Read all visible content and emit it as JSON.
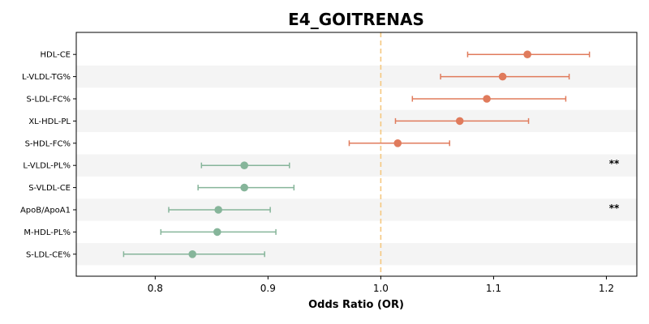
{
  "chart_data": {
    "type": "scatter",
    "subtype": "forest-plot",
    "title": "E4_GOITRENAS",
    "xlabel": "Odds Ratio (OR)",
    "ylabel": "",
    "xlim": [
      0.73,
      1.227
    ],
    "xticks": [
      0.8,
      0.9,
      1.0,
      1.1,
      1.2
    ],
    "xtick_labels": [
      "0.8",
      "0.9",
      "1.0",
      "1.1",
      "1.2"
    ],
    "reference_line": 1.0,
    "grid": false,
    "row_banding": true,
    "colors": {
      "increased": "#e07b5c",
      "decreased": "#86b59a",
      "reference_line": "#f5c77e",
      "band": "#f4f4f4"
    },
    "rows": [
      {
        "label": "HDL-CE",
        "or": 1.13,
        "ci_low": 1.077,
        "ci_high": 1.185,
        "sig": ""
      },
      {
        "label": "L-VLDL-TG%",
        "or": 1.108,
        "ci_low": 1.053,
        "ci_high": 1.167,
        "sig": ""
      },
      {
        "label": "S-LDL-FC%",
        "or": 1.094,
        "ci_low": 1.028,
        "ci_high": 1.164,
        "sig": ""
      },
      {
        "label": "XL-HDL-PL",
        "or": 1.07,
        "ci_low": 1.013,
        "ci_high": 1.131,
        "sig": ""
      },
      {
        "label": "S-HDL-FC%",
        "or": 1.015,
        "ci_low": 0.972,
        "ci_high": 1.061,
        "sig": ""
      },
      {
        "label": "L-VLDL-PL%",
        "or": 0.879,
        "ci_low": 0.841,
        "ci_high": 0.919,
        "sig": "**"
      },
      {
        "label": "S-VLDL-CE",
        "or": 0.879,
        "ci_low": 0.838,
        "ci_high": 0.923,
        "sig": ""
      },
      {
        "label": "ApoB/ApoA1",
        "or": 0.856,
        "ci_low": 0.812,
        "ci_high": 0.902,
        "sig": "**"
      },
      {
        "label": "M-HDL-PL%",
        "or": 0.855,
        "ci_low": 0.805,
        "ci_high": 0.907,
        "sig": ""
      },
      {
        "label": "S-LDL-CE%",
        "or": 0.833,
        "ci_low": 0.772,
        "ci_high": 0.897,
        "sig": ""
      }
    ]
  }
}
